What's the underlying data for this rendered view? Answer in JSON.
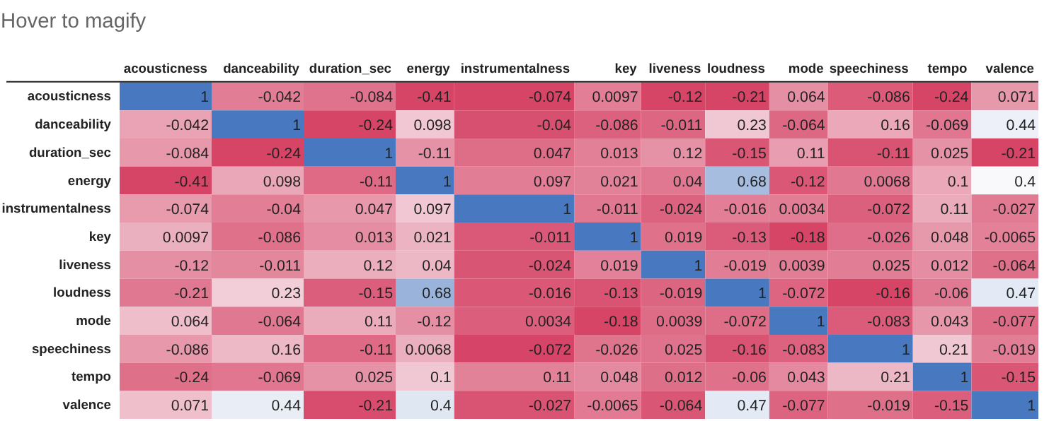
{
  "chart_data": {
    "type": "heatmap",
    "title": "Hover to magify",
    "data_labels": true,
    "categories": [
      "acousticness",
      "danceability",
      "duration_sec",
      "energy",
      "instrumentalness",
      "key",
      "liveness",
      "loudness",
      "mode",
      "speechiness",
      "tempo",
      "valence"
    ],
    "y_categories": [
      "acousticness",
      "danceability",
      "duration_sec",
      "energy",
      "instrumentalness",
      "key",
      "liveness",
      "loudness",
      "mode",
      "speechiness",
      "tempo",
      "valence"
    ],
    "cells": [
      [
        1,
        -0.042,
        -0.084,
        -0.41,
        -0.074,
        0.0097,
        -0.12,
        -0.21,
        0.064,
        -0.086,
        -0.24,
        0.071
      ],
      [
        -0.042,
        1,
        -0.24,
        0.098,
        -0.04,
        -0.086,
        -0.011,
        0.23,
        -0.064,
        0.16,
        -0.069,
        0.44
      ],
      [
        -0.084,
        -0.24,
        1,
        -0.11,
        0.047,
        0.013,
        0.12,
        -0.15,
        0.11,
        -0.11,
        0.025,
        -0.21
      ],
      [
        -0.41,
        0.098,
        -0.11,
        1,
        0.097,
        0.021,
        0.04,
        0.68,
        -0.12,
        0.0068,
        0.1,
        0.4
      ],
      [
        -0.074,
        -0.04,
        0.047,
        0.097,
        1,
        -0.011,
        -0.024,
        -0.016,
        0.0034,
        -0.072,
        0.11,
        -0.027
      ],
      [
        0.0097,
        -0.086,
        0.013,
        0.021,
        -0.011,
        1,
        0.019,
        -0.13,
        -0.18,
        -0.026,
        0.048,
        -0.0065
      ],
      [
        -0.12,
        -0.011,
        0.12,
        0.04,
        -0.024,
        0.019,
        1,
        -0.019,
        0.0039,
        0.025,
        0.012,
        -0.064
      ],
      [
        -0.21,
        0.23,
        -0.15,
        0.68,
        -0.016,
        -0.13,
        -0.019,
        1,
        -0.072,
        -0.16,
        -0.06,
        0.47
      ],
      [
        0.064,
        -0.064,
        0.11,
        -0.12,
        0.0034,
        -0.18,
        0.0039,
        -0.072,
        1,
        -0.083,
        0.043,
        -0.077
      ],
      [
        -0.086,
        0.16,
        -0.11,
        0.0068,
        -0.072,
        -0.026,
        0.025,
        -0.16,
        -0.083,
        1,
        0.21,
        -0.019
      ],
      [
        -0.24,
        -0.069,
        0.025,
        0.1,
        0.11,
        0.048,
        0.012,
        -0.06,
        0.043,
        0.21,
        1,
        -0.15
      ],
      [
        0.071,
        0.44,
        -0.21,
        0.4,
        -0.027,
        -0.0065,
        -0.064,
        0.47,
        -0.077,
        -0.019,
        -0.15,
        1
      ]
    ]
  }
}
